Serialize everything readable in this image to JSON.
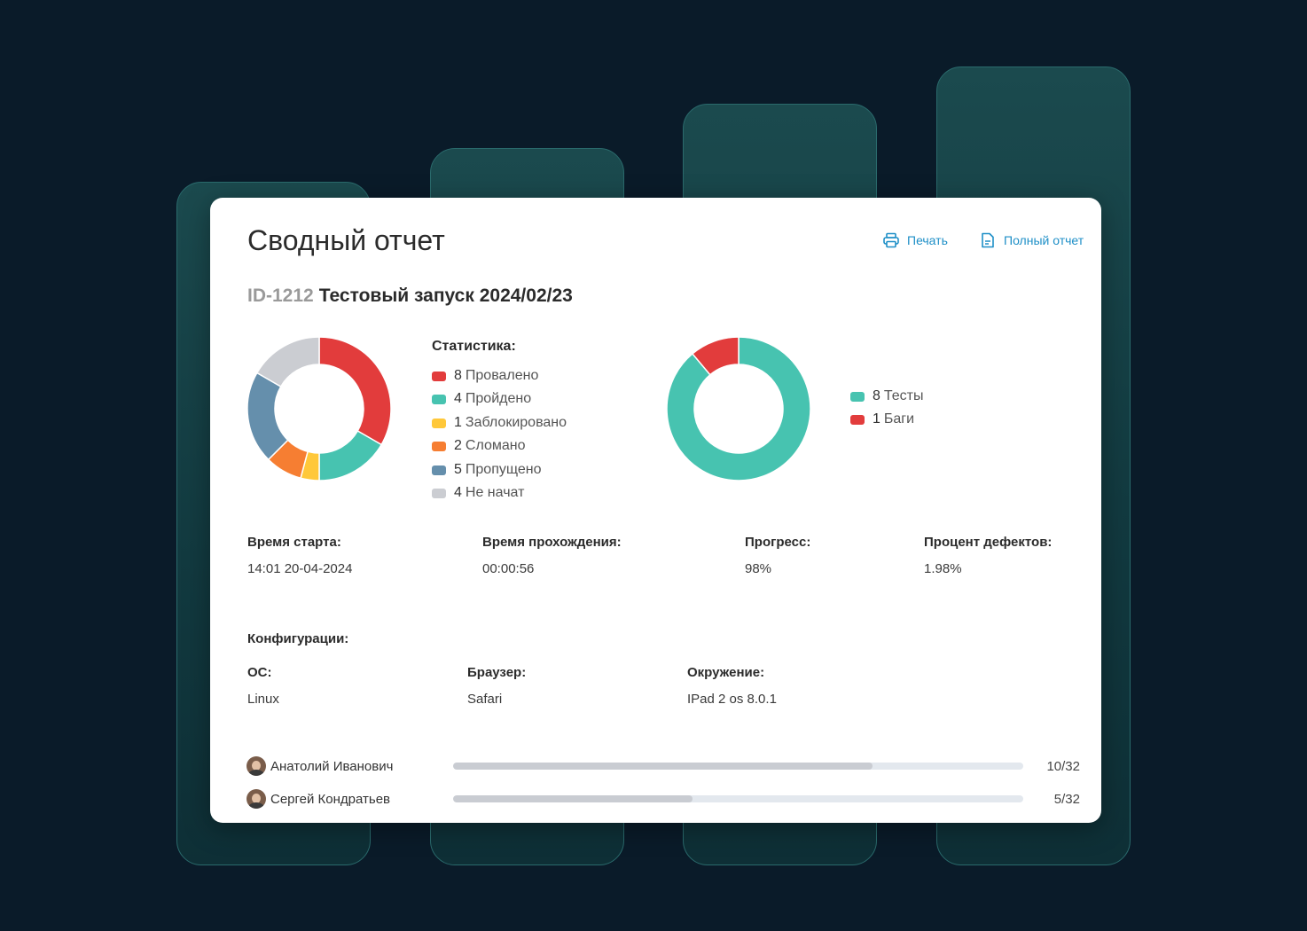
{
  "header": {
    "title": "Сводный отчет",
    "print_label": "Печать",
    "full_report_label": "Полный отчет"
  },
  "run": {
    "id": "ID-1212",
    "name": "Тестовый запуск 2024/02/23"
  },
  "colors": {
    "failed": "#e23c3c",
    "passed": "#47c3b0",
    "blocked": "#ffc83a",
    "broken": "#f67e32",
    "skipped": "#658fac",
    "not_started": "#cbcdd2",
    "accent": "#1e8fc7"
  },
  "stats": {
    "heading": "Статистика:",
    "items": [
      {
        "count": "8",
        "label": "Провалено",
        "color": "#e23c3c"
      },
      {
        "count": "4",
        "label": "Пройдено",
        "color": "#47c3b0"
      },
      {
        "count": "1",
        "label": "Заблокировано",
        "color": "#ffc83a"
      },
      {
        "count": "2",
        "label": "Сломано",
        "color": "#f67e32"
      },
      {
        "count": "5",
        "label": "Пропущено",
        "color": "#658fac"
      },
      {
        "count": "4",
        "label": "Не начат",
        "color": "#cbcdd2"
      }
    ]
  },
  "chart_data": [
    {
      "type": "pie",
      "donut": true,
      "categories": [
        "Провалено",
        "Пройдено",
        "Заблокировано",
        "Сломано",
        "Пропущено",
        "Не начат"
      ],
      "values": [
        8,
        4,
        1,
        2,
        5,
        4
      ],
      "colors": [
        "#e23c3c",
        "#47c3b0",
        "#ffc83a",
        "#f67e32",
        "#658fac",
        "#cbcdd2"
      ]
    },
    {
      "type": "pie",
      "donut": true,
      "categories": [
        "Тесты",
        "Баги"
      ],
      "values": [
        8,
        1
      ],
      "colors": [
        "#47c3b0",
        "#e23c3c"
      ]
    }
  ],
  "defects_legend": [
    {
      "count": "8",
      "label": "Тесты",
      "color": "#47c3b0"
    },
    {
      "count": "1",
      "label": "Баги",
      "color": "#e23c3c"
    }
  ],
  "info": {
    "start_label": "Время старта:",
    "start_value": "14:01  20-04-2024",
    "duration_label": "Время прохождения:",
    "duration_value": "00:00:56",
    "progress_label": "Прогресс:",
    "progress_value": "98%",
    "defect_label": "Процент дефектов:",
    "defect_value": "1.98%"
  },
  "config": {
    "heading": "Конфигурации:",
    "os_label": "ОС:",
    "os_value": "Linux",
    "browser_label": "Браузер:",
    "browser_value": "Safari",
    "env_label": "Окружение:",
    "env_value": "IPad 2 os 8.0.1"
  },
  "users": [
    {
      "name": "Анатолий Иванович",
      "count": "10/32",
      "progress": 0.735
    },
    {
      "name": "Сергей Кондратьев",
      "count": "5/32",
      "progress": 0.42
    }
  ]
}
